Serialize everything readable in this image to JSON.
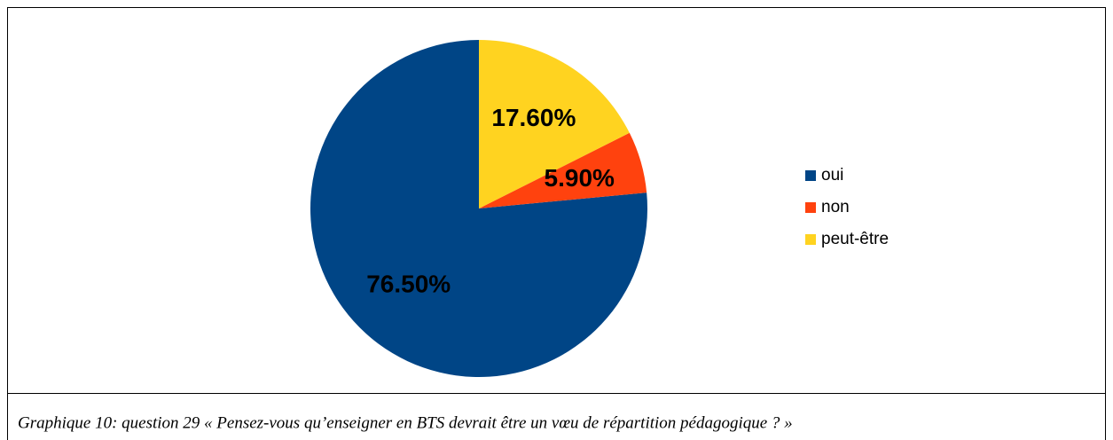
{
  "chart_data": {
    "type": "pie",
    "categories": [
      "oui",
      "non",
      "peut-être"
    ],
    "values": [
      76.5,
      5.9,
      17.6
    ],
    "value_labels": [
      "76.50%",
      "5.90%",
      "17.60%"
    ],
    "colors": [
      "#004586",
      "#ff420e",
      "#ffd320"
    ],
    "legend": "right",
    "caption": "Graphique 10: question 29 « Pensez-vous qu’enseigner en BTS devrait être un vœu de répartition pédagogique ? »"
  }
}
